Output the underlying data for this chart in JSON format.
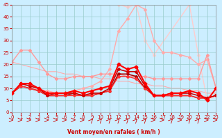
{
  "xlabel": "Vent moyen/en rafales ( km/h )",
  "ylim": [
    0,
    45
  ],
  "xlim": [
    0,
    23
  ],
  "yticks": [
    0,
    5,
    10,
    15,
    20,
    25,
    30,
    35,
    40,
    45
  ],
  "xticks": [
    0,
    1,
    2,
    3,
    4,
    5,
    6,
    7,
    8,
    9,
    10,
    11,
    12,
    13,
    14,
    15,
    16,
    17,
    18,
    19,
    20,
    21,
    22,
    23
  ],
  "bg_color": "#cceeff",
  "grid_color": "#99cccc",
  "series": [
    {
      "x": [
        0,
        1,
        2,
        3,
        4,
        5,
        6,
        7,
        8,
        9,
        10,
        11,
        12,
        13,
        14,
        15,
        16,
        17,
        18,
        19,
        20,
        21,
        22,
        23
      ],
      "y": [
        21,
        20,
        19,
        18,
        17,
        17,
        16,
        16,
        15,
        15,
        14,
        14,
        13,
        13,
        12,
        12,
        11,
        11,
        10,
        10,
        9,
        9,
        8,
        8
      ],
      "color": "#ffaaaa",
      "lw": 0.8,
      "marker": null,
      "ms": 0,
      "zorder": 1
    },
    {
      "x": [
        0,
        1,
        2,
        3,
        4,
        5,
        6,
        7,
        8,
        9,
        10,
        11,
        12,
        13,
        14,
        15,
        16,
        17,
        18,
        19,
        20,
        21,
        22,
        23
      ],
      "y": [
        8,
        12,
        11,
        9,
        9,
        8,
        8,
        9,
        10,
        11,
        13,
        18,
        34,
        39,
        45,
        43,
        30,
        25,
        25,
        24,
        23,
        20,
        22,
        10
      ],
      "color": "#ffaaaa",
      "lw": 1.0,
      "marker": "D",
      "ms": 2,
      "zorder": 2
    },
    {
      "x": [
        0,
        1,
        2,
        3,
        4,
        5,
        6,
        7,
        8,
        9,
        10,
        11,
        12,
        13,
        14,
        15,
        16,
        17,
        18,
        19,
        20,
        21,
        22,
        23
      ],
      "y": [
        21,
        26,
        26,
        21,
        16,
        14,
        14,
        15,
        15,
        15,
        16,
        16,
        16,
        15,
        15,
        15,
        14,
        14,
        14,
        14,
        14,
        14,
        24,
        10
      ],
      "color": "#ff9999",
      "lw": 1.0,
      "marker": "D",
      "ms": 2,
      "zorder": 2
    },
    {
      "x": [
        0,
        1,
        2,
        3,
        4,
        5,
        6,
        7,
        8,
        9,
        10,
        11,
        12,
        13,
        14,
        15,
        16,
        17,
        18,
        19,
        20,
        21,
        22,
        23
      ],
      "y": [
        8,
        12,
        12,
        10,
        8,
        8,
        8,
        9,
        8,
        9,
        10,
        11,
        20,
        18,
        19,
        12,
        7,
        7,
        8,
        8,
        9,
        8,
        5,
        10
      ],
      "color": "#ff0000",
      "lw": 1.5,
      "marker": "D",
      "ms": 2.5,
      "zorder": 5
    },
    {
      "x": [
        0,
        1,
        2,
        3,
        4,
        5,
        6,
        7,
        8,
        9,
        10,
        11,
        12,
        13,
        14,
        15,
        16,
        17,
        18,
        19,
        20,
        21,
        22,
        23
      ],
      "y": [
        8,
        12,
        11,
        10,
        7,
        8,
        8,
        8,
        7,
        8,
        8,
        10,
        18,
        17,
        17,
        11,
        7,
        7,
        8,
        8,
        8,
        7,
        6,
        7
      ],
      "color": "#cc0000",
      "lw": 1.2,
      "marker": "D",
      "ms": 2,
      "zorder": 4
    },
    {
      "x": [
        0,
        1,
        2,
        3,
        4,
        5,
        6,
        7,
        8,
        9,
        10,
        11,
        12,
        13,
        14,
        15,
        16,
        17,
        18,
        19,
        20,
        21,
        22,
        23
      ],
      "y": [
        8,
        11,
        10,
        9,
        7,
        7,
        7,
        8,
        7,
        7,
        8,
        9,
        16,
        16,
        15,
        10,
        7,
        7,
        7,
        7,
        7,
        6,
        6,
        7
      ],
      "color": "#aa0000",
      "lw": 1.2,
      "marker": "D",
      "ms": 2,
      "zorder": 3
    },
    {
      "x": [
        0,
        1,
        2,
        3,
        4,
        5,
        6,
        7,
        8,
        9,
        10,
        11,
        12,
        13,
        14,
        15,
        16,
        17,
        18,
        19,
        20,
        21,
        22,
        23
      ],
      "y": [
        8,
        11,
        10,
        9,
        7,
        7,
        7,
        7,
        7,
        7,
        8,
        9,
        15,
        15,
        14,
        10,
        7,
        7,
        7,
        7,
        7,
        6,
        6,
        7
      ],
      "color": "#ff3333",
      "lw": 1.0,
      "marker": "D",
      "ms": 2,
      "zorder": 3
    },
    {
      "x": [
        12,
        13,
        14,
        15,
        16,
        20,
        21,
        22,
        23
      ],
      "y": [
        45,
        44,
        45,
        30,
        24,
        45,
        24,
        5,
        7
      ],
      "color": "#ffcccc",
      "lw": 1.0,
      "marker": "D",
      "ms": 2,
      "zorder": 1
    }
  ],
  "wind_dirs_x": [
    0,
    1,
    2,
    3,
    4,
    5,
    6,
    7,
    8,
    9,
    10,
    11,
    12,
    13,
    14,
    15,
    16,
    17,
    18,
    19,
    20,
    21,
    22,
    23
  ],
  "wind_dirs": [
    2,
    2,
    2,
    2,
    2,
    2,
    2,
    2,
    2,
    3,
    3,
    3,
    3,
    3,
    3,
    3,
    2,
    2,
    3,
    2,
    3,
    3,
    2,
    2
  ]
}
